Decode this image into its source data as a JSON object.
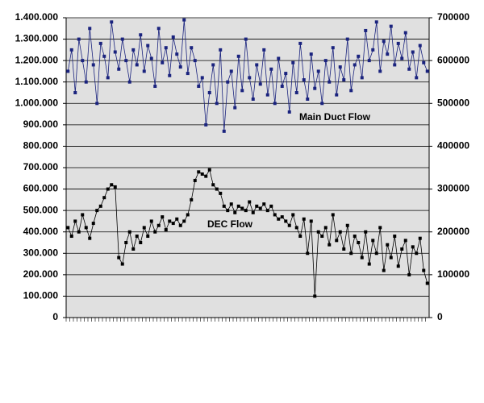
{
  "chart_data": {
    "type": "line",
    "categories": [
      null,
      null,
      null,
      null,
      null,
      null,
      null,
      null,
      null,
      null,
      null,
      null,
      null,
      null,
      null,
      null,
      null,
      null,
      null,
      null,
      null,
      null,
      null,
      null,
      null,
      null,
      null,
      null,
      null,
      null,
      null,
      null,
      null,
      null,
      null,
      null,
      null,
      null,
      null,
      null,
      null,
      null,
      null,
      null,
      null,
      null,
      null,
      null,
      null,
      null,
      null,
      null,
      null,
      null,
      null,
      null,
      null,
      null,
      null,
      null,
      null,
      null,
      null,
      null,
      null,
      null,
      null,
      null,
      null,
      null,
      null,
      null,
      null,
      null,
      null,
      null,
      null,
      null,
      null,
      null,
      null,
      null,
      null,
      null,
      null,
      null,
      null,
      null,
      null,
      null,
      null,
      null,
      null,
      null,
      null,
      null,
      null,
      null,
      null,
      null
    ],
    "series": [
      {
        "name": "Main Duct Flow",
        "color": "#1a237e",
        "values": [
          1150000,
          1250000,
          1050000,
          1300000,
          1200000,
          1100000,
          1350000,
          1180000,
          1000000,
          1280000,
          1220000,
          1120000,
          1380000,
          1240000,
          1160000,
          1300000,
          1200000,
          1100000,
          1250000,
          1180000,
          1320000,
          1150000,
          1270000,
          1210000,
          1080000,
          1350000,
          1190000,
          1260000,
          1130000,
          1310000,
          1230000,
          1170000,
          1390000,
          1140000,
          1260000,
          1200000,
          1080000,
          1120000,
          900000,
          1050000,
          1180000,
          1000000,
          1250000,
          870000,
          1100000,
          1150000,
          980000,
          1220000,
          1060000,
          1300000,
          1120000,
          1020000,
          1180000,
          1090000,
          1250000,
          1040000,
          1160000,
          1000000,
          1210000,
          1080000,
          1140000,
          960000,
          1190000,
          1050000,
          1280000,
          1110000,
          1020000,
          1230000,
          1070000,
          1150000,
          1000000,
          1200000,
          1100000,
          1260000,
          1040000,
          1170000,
          1110000,
          1300000,
          1060000,
          1180000,
          1220000,
          1120000,
          1340000,
          1200000,
          1250000,
          1380000,
          1150000,
          1290000,
          1230000,
          1360000,
          1180000,
          1280000,
          1210000,
          1330000,
          1160000,
          1240000,
          1120000,
          1270000,
          1190000,
          1150000
        ]
      },
      {
        "name": "DEC Flow",
        "color": "#000000",
        "values": [
          420000,
          380000,
          450000,
          400000,
          480000,
          420000,
          370000,
          440000,
          500000,
          520000,
          560000,
          600000,
          620000,
          610000,
          280000,
          250000,
          350000,
          400000,
          320000,
          380000,
          350000,
          420000,
          380000,
          450000,
          400000,
          430000,
          470000,
          410000,
          450000,
          440000,
          460000,
          430000,
          450000,
          480000,
          550000,
          640000,
          680000,
          670000,
          660000,
          690000,
          620000,
          600000,
          580000,
          520000,
          500000,
          530000,
          490000,
          520000,
          510000,
          500000,
          540000,
          490000,
          520000,
          510000,
          530000,
          500000,
          520000,
          480000,
          460000,
          470000,
          450000,
          430000,
          480000,
          420000,
          380000,
          460000,
          300000,
          450000,
          100000,
          400000,
          380000,
          420000,
          340000,
          480000,
          360000,
          400000,
          320000,
          430000,
          300000,
          380000,
          350000,
          280000,
          400000,
          250000,
          360000,
          300000,
          420000,
          220000,
          340000,
          280000,
          380000,
          240000,
          320000,
          360000,
          200000,
          330000,
          300000,
          370000,
          220000,
          160000
        ]
      }
    ],
    "ylim": [
      0,
      1400000
    ],
    "yticks": [
      0,
      {
        "value": 100000,
        "label": "100.000"
      },
      {
        "value": 200000,
        "label": "200.000"
      },
      {
        "value": 300000,
        "label": "300.000"
      },
      {
        "value": 400000,
        "label": "400.000"
      },
      {
        "value": 500000,
        "label": "500.000"
      },
      {
        "value": 600000,
        "label": "600.000"
      },
      {
        "value": 700000,
        "label": "700.000"
      },
      {
        "value": 800000,
        "label": "800.000"
      },
      {
        "value": 900000,
        "label": "900.000"
      },
      {
        "value": 1000000,
        "label": "1.000.000"
      },
      {
        "value": 1100000,
        "label": "1.100.000"
      },
      {
        "value": 1200000,
        "label": "1.200.000"
      },
      {
        "value": 1300000,
        "label": "1.300.000"
      },
      {
        "value": 1400000,
        "label": "1.400.000"
      }
    ],
    "y2lim": [
      0,
      700000
    ],
    "y2ticks": [
      0,
      100000,
      200000,
      300000,
      400000,
      500000,
      600000,
      700000
    ],
    "grid": true,
    "background": "#e0e0e0",
    "annotations": [
      {
        "text": "Main Duct Flow"
      },
      {
        "text": "DEC Flow"
      }
    ]
  }
}
